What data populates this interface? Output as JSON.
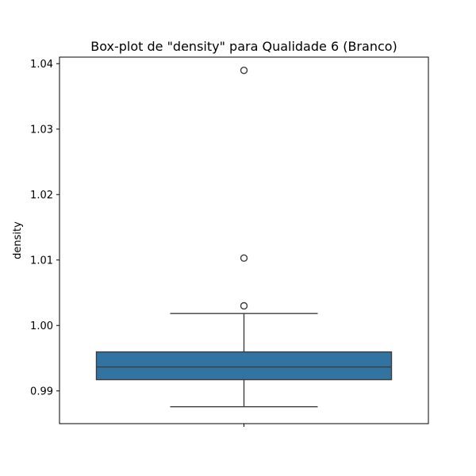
{
  "chart_data": {
    "type": "box",
    "title": "Box-plot de \"density\" para Qualidade 6 (Branco)",
    "xlabel": "",
    "ylabel": "density",
    "ylim": [
      0.985,
      1.041
    ],
    "y_ticks": [
      0.99,
      1.0,
      1.01,
      1.02,
      1.03,
      1.04
    ],
    "y_tick_labels": [
      "0.99",
      "1.00",
      "1.01",
      "1.02",
      "1.03",
      "1.04"
    ],
    "x_ticks": [
      ""
    ],
    "grid": false,
    "legend": "none",
    "box": {
      "whisker_low": 0.98758,
      "q1": 0.99172,
      "median": 0.99366,
      "q3": 0.99596,
      "whisker_high": 1.00182,
      "outliers": [
        1.003,
        1.0103,
        1.03898
      ]
    },
    "colors": {
      "box_fill": "#3274a1",
      "line": "#3d3d3d",
      "outlier_edge": "#3d3d3d"
    }
  }
}
